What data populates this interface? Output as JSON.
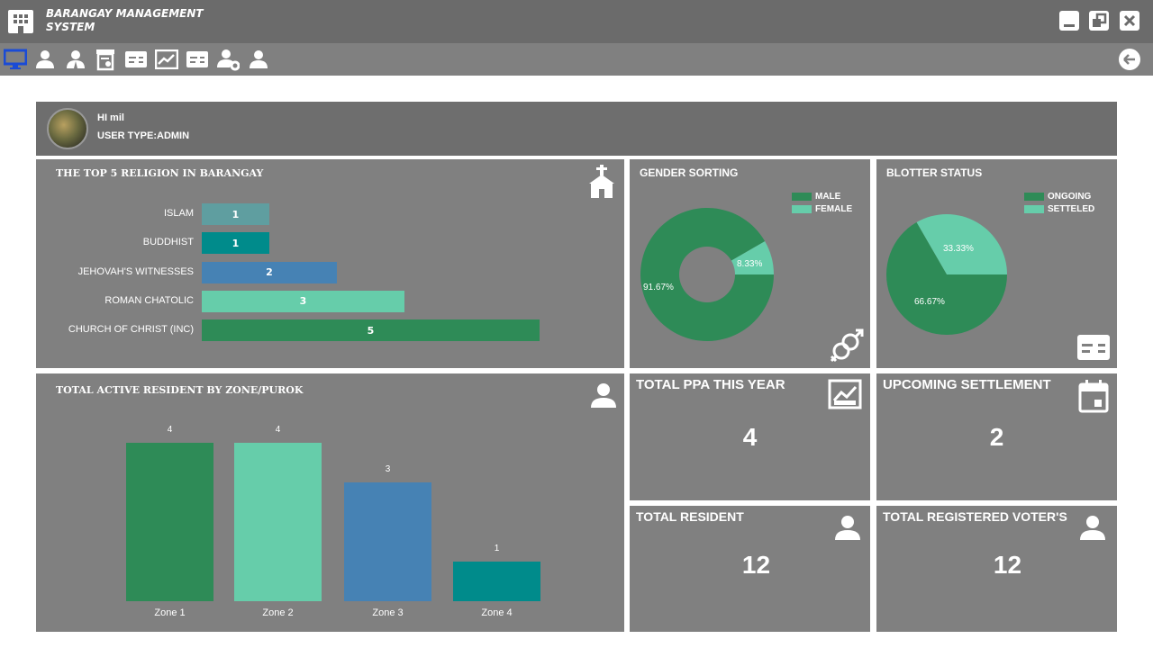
{
  "app": {
    "title_line1": "BARANGAY MANAGEMENT",
    "title_line2": "SYSTEM"
  },
  "toolbar": {
    "icons": [
      "monitor-icon",
      "user-icon",
      "officials-icon",
      "certificate-icon",
      "id-card-icon",
      "chart-icon",
      "blotter-card-icon",
      "user-settings-icon",
      "users-icon"
    ],
    "back_icon": "arrow-left-icon"
  },
  "user": {
    "greeting": "HI mil",
    "user_type": "USER TYPE:ADMIN"
  },
  "religion": {
    "title": "THE TOP 5 RELIGION IN BARANGAY",
    "icon": "church-icon",
    "max": 5,
    "items": [
      {
        "label": "ISLAM",
        "value": 1,
        "color": "#5f9ea0"
      },
      {
        "label": "BUDDHIST",
        "value": 1,
        "color": "#008b8b"
      },
      {
        "label": "JEHOVAH'S WITNESSES",
        "value": 2,
        "color": "#4682b4"
      },
      {
        "label": "ROMAN CHATOLIC",
        "value": 3,
        "color": "#66cdaa"
      },
      {
        "label": "CHURCH OF CHRIST  (INC)",
        "value": 5,
        "color": "#2e8b57"
      }
    ]
  },
  "gender": {
    "title": "GENDER SORTING",
    "icon": "gender-icon",
    "slices": [
      {
        "label": "MALE",
        "value": 91.67,
        "text": "91.67%",
        "color": "#2e8b57"
      },
      {
        "label": "FEMALE",
        "value": 8.33,
        "text": "8.33%",
        "color": "#66cdaa"
      }
    ]
  },
  "blotter": {
    "title": "BLOTTER STATUS",
    "icon": "blotter-icon",
    "slices": [
      {
        "label": "ONGOING",
        "value": 66.67,
        "text": "66.67%",
        "color": "#2e8b57"
      },
      {
        "label": "SETTELED",
        "value": 33.33,
        "text": "33.33%",
        "color": "#66cdaa"
      }
    ]
  },
  "zone": {
    "title": "TOTAL ACTIVE RESIDENT BY ZONE/PUROK",
    "icon": "resident-icon",
    "max": 4,
    "items": [
      {
        "label": "Zone 1",
        "value": 4,
        "color": "#2e8b57"
      },
      {
        "label": "Zone 2",
        "value": 4,
        "color": "#66cdaa"
      },
      {
        "label": "Zone 3",
        "value": 3,
        "color": "#4682b4"
      },
      {
        "label": "Zone 4",
        "value": 1,
        "color": "#008b8b"
      }
    ]
  },
  "stats": {
    "ppa": {
      "title": "TOTAL PPA THIS YEAR",
      "value": "4"
    },
    "settlement": {
      "title": "UPCOMING SETTLEMENT",
      "value": "2"
    },
    "resident": {
      "title": "TOTAL RESIDENT",
      "value": "12"
    },
    "voter": {
      "title": "TOTAL REGISTERED VOTER'S",
      "value": "12"
    }
  },
  "chart_data": [
    {
      "type": "bar",
      "title": "THE TOP 5 RELIGION IN BARANGAY",
      "categories": [
        "ISLAM",
        "BUDDHIST",
        "JEHOVAH'S WITNESSES",
        "ROMAN CHATOLIC",
        "CHURCH OF CHRIST  (INC)"
      ],
      "values": [
        1,
        1,
        2,
        3,
        5
      ]
    },
    {
      "type": "pie",
      "title": "GENDER SORTING",
      "categories": [
        "MALE",
        "FEMALE"
      ],
      "values": [
        91.67,
        8.33
      ]
    },
    {
      "type": "pie",
      "title": "BLOTTER STATUS",
      "categories": [
        "ONGOING",
        "SETTELED"
      ],
      "values": [
        66.67,
        33.33
      ]
    },
    {
      "type": "bar",
      "title": "TOTAL ACTIVE RESIDENT BY ZONE/PUROK",
      "categories": [
        "Zone 1",
        "Zone 2",
        "Zone 3",
        "Zone 4"
      ],
      "values": [
        4,
        4,
        3,
        1
      ]
    }
  ]
}
